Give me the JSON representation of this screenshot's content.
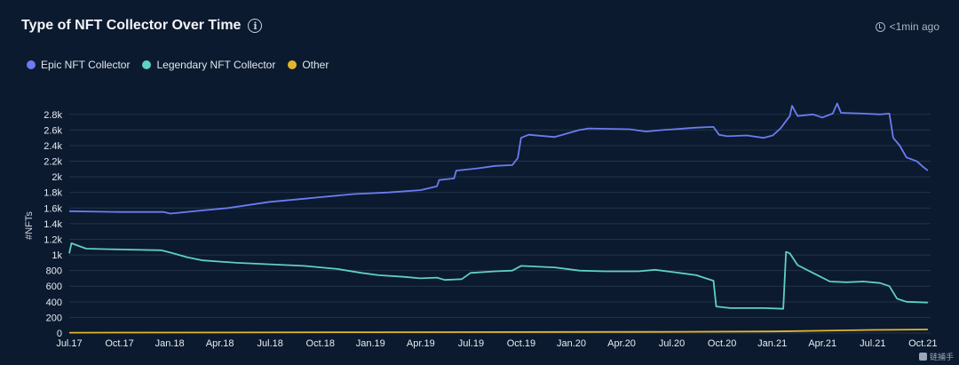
{
  "header": {
    "title": "Type of NFT Collector Over Time",
    "info_glyph": "i",
    "updated": "<1min ago"
  },
  "watermark": {
    "text": "链捕手"
  },
  "colors": {
    "background": "#0b1a2e",
    "grid": "#233349",
    "epic": "#6b7cf0",
    "legendary": "#5fd0c2",
    "other": "#e3b52c"
  },
  "chart_data": {
    "type": "line",
    "title": "Type of NFT Collector Over Time",
    "ylabel": "#NFTs",
    "xlabel": "",
    "x_ticks": [
      "Jul.17",
      "Oct.17",
      "Jan.18",
      "Apr.18",
      "Jul.18",
      "Oct.18",
      "Jan.19",
      "Apr.19",
      "Jul.19",
      "Oct.19",
      "Jan.20",
      "Apr.20",
      "Jul.20",
      "Oct.20",
      "Jan.21",
      "Apr.21",
      "Jul.21",
      "Oct.21"
    ],
    "y_ticks": [
      0,
      200,
      400,
      600,
      800,
      1000,
      1200,
      1400,
      1600,
      1800,
      2000,
      2200,
      2400,
      2600,
      2800
    ],
    "y_tick_labels": [
      "0",
      "200",
      "400",
      "600",
      "800",
      "1k",
      "1.2k",
      "1.4k",
      "1.6k",
      "1.8k",
      "2k",
      "2.2k",
      "2.4k",
      "2.6k",
      "2.8k"
    ],
    "ylim": [
      0,
      2900
    ],
    "xlim": [
      "2017-07-01",
      "2021-10-15"
    ],
    "grid": true,
    "legend_position": "top-left",
    "series": [
      {
        "name": "Epic NFT Collector",
        "color": "#6b7cf0",
        "points": [
          [
            "2017-07-01",
            1560
          ],
          [
            "2017-10-01",
            1550
          ],
          [
            "2017-12-20",
            1550
          ],
          [
            "2018-01-01",
            1530
          ],
          [
            "2018-03-01",
            1570
          ],
          [
            "2018-04-15",
            1600
          ],
          [
            "2018-07-01",
            1680
          ],
          [
            "2018-09-01",
            1720
          ],
          [
            "2018-10-01",
            1740
          ],
          [
            "2018-12-01",
            1780
          ],
          [
            "2019-02-01",
            1800
          ],
          [
            "2019-04-01",
            1830
          ],
          [
            "2019-05-01",
            1880
          ],
          [
            "2019-05-05",
            1960
          ],
          [
            "2019-06-01",
            1980
          ],
          [
            "2019-06-05",
            2080
          ],
          [
            "2019-07-15",
            2110
          ],
          [
            "2019-08-15",
            2140
          ],
          [
            "2019-09-15",
            2150
          ],
          [
            "2019-09-25",
            2240
          ],
          [
            "2019-10-01",
            2500
          ],
          [
            "2019-10-15",
            2540
          ],
          [
            "2019-12-01",
            2510
          ],
          [
            "2020-01-15",
            2600
          ],
          [
            "2020-02-01",
            2620
          ],
          [
            "2020-04-15",
            2610
          ],
          [
            "2020-05-15",
            2580
          ],
          [
            "2020-06-15",
            2600
          ],
          [
            "2020-08-15",
            2630
          ],
          [
            "2020-09-15",
            2640
          ],
          [
            "2020-09-25",
            2540
          ],
          [
            "2020-10-10",
            2520
          ],
          [
            "2020-11-15",
            2530
          ],
          [
            "2020-12-15",
            2500
          ],
          [
            "2021-01-01",
            2530
          ],
          [
            "2021-01-15",
            2620
          ],
          [
            "2021-02-01",
            2780
          ],
          [
            "2021-02-05",
            2910
          ],
          [
            "2021-02-15",
            2780
          ],
          [
            "2021-03-15",
            2800
          ],
          [
            "2021-04-01",
            2760
          ],
          [
            "2021-04-20",
            2810
          ],
          [
            "2021-04-28",
            2940
          ],
          [
            "2021-05-05",
            2820
          ],
          [
            "2021-06-15",
            2810
          ],
          [
            "2021-07-15",
            2800
          ],
          [
            "2021-08-01",
            2810
          ],
          [
            "2021-08-08",
            2500
          ],
          [
            "2021-08-20",
            2400
          ],
          [
            "2021-09-01",
            2250
          ],
          [
            "2021-09-20",
            2200
          ],
          [
            "2021-10-01",
            2130
          ],
          [
            "2021-10-10",
            2080
          ]
        ]
      },
      {
        "name": "Legendary NFT Collector",
        "color": "#5fd0c2",
        "points": [
          [
            "2017-07-01",
            1020
          ],
          [
            "2017-07-05",
            1150
          ],
          [
            "2017-07-20",
            1110
          ],
          [
            "2017-08-01",
            1080
          ],
          [
            "2017-10-01",
            1070
          ],
          [
            "2017-12-15",
            1060
          ],
          [
            "2018-01-01",
            1030
          ],
          [
            "2018-02-01",
            970
          ],
          [
            "2018-03-01",
            930
          ],
          [
            "2018-05-01",
            900
          ],
          [
            "2018-07-01",
            880
          ],
          [
            "2018-09-01",
            860
          ],
          [
            "2018-11-01",
            820
          ],
          [
            "2018-12-15",
            770
          ],
          [
            "2019-01-15",
            740
          ],
          [
            "2019-03-01",
            720
          ],
          [
            "2019-04-01",
            700
          ],
          [
            "2019-05-01",
            710
          ],
          [
            "2019-05-15",
            680
          ],
          [
            "2019-06-15",
            690
          ],
          [
            "2019-07-01",
            770
          ],
          [
            "2019-08-15",
            790
          ],
          [
            "2019-09-15",
            800
          ],
          [
            "2019-10-01",
            860
          ],
          [
            "2019-12-01",
            840
          ],
          [
            "2020-01-15",
            800
          ],
          [
            "2020-03-01",
            790
          ],
          [
            "2020-05-01",
            790
          ],
          [
            "2020-06-01",
            810
          ],
          [
            "2020-07-15",
            770
          ],
          [
            "2020-08-15",
            740
          ],
          [
            "2020-09-01",
            700
          ],
          [
            "2020-09-15",
            670
          ],
          [
            "2020-09-20",
            340
          ],
          [
            "2020-10-15",
            320
          ],
          [
            "2020-12-15",
            320
          ],
          [
            "2021-01-20",
            310
          ],
          [
            "2021-01-25",
            1040
          ],
          [
            "2021-02-01",
            1020
          ],
          [
            "2021-02-15",
            870
          ],
          [
            "2021-03-15",
            770
          ],
          [
            "2021-04-15",
            660
          ],
          [
            "2021-05-15",
            650
          ],
          [
            "2021-06-15",
            660
          ],
          [
            "2021-07-15",
            640
          ],
          [
            "2021-08-01",
            600
          ],
          [
            "2021-08-15",
            440
          ],
          [
            "2021-09-01",
            400
          ],
          [
            "2021-10-10",
            390
          ]
        ]
      },
      {
        "name": "Other",
        "color": "#e3b52c",
        "points": [
          [
            "2017-07-01",
            5
          ],
          [
            "2019-01-01",
            10
          ],
          [
            "2020-06-01",
            15
          ],
          [
            "2021-01-01",
            20
          ],
          [
            "2021-04-01",
            30
          ],
          [
            "2021-07-01",
            40
          ],
          [
            "2021-10-10",
            45
          ]
        ]
      }
    ]
  }
}
